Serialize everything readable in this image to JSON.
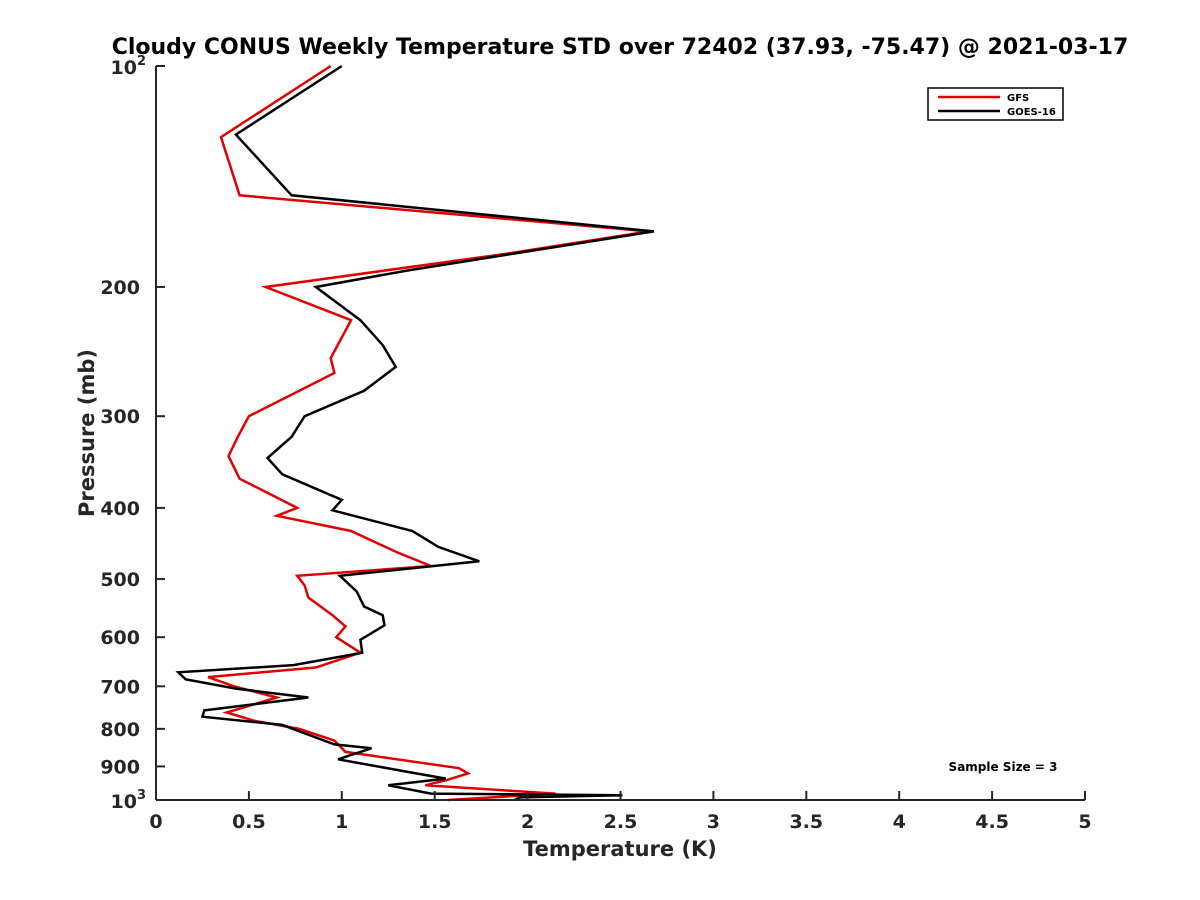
{
  "chart_data": {
    "type": "line",
    "title": "Cloudy CONUS Weekly Temperature STD over 72402 (37.93, -75.47) @ 2021-03-17",
    "xlabel": "Temperature (K)",
    "ylabel": "Pressure (mb)",
    "xlim": [
      0,
      5
    ],
    "ylim": [
      100,
      1000
    ],
    "y_scale": "log",
    "y_reversed": true,
    "grid": false,
    "legend_position": "top-right",
    "x_ticks": [
      {
        "value": 0,
        "label": "0"
      },
      {
        "value": 0.5,
        "label": "0.5"
      },
      {
        "value": 1,
        "label": "1"
      },
      {
        "value": 1.5,
        "label": "1.5"
      },
      {
        "value": 2,
        "label": "2"
      },
      {
        "value": 2.5,
        "label": "2.5"
      },
      {
        "value": 3,
        "label": "3"
      },
      {
        "value": 3.5,
        "label": "3.5"
      },
      {
        "value": 4,
        "label": "4"
      },
      {
        "value": 4.5,
        "label": "4.5"
      },
      {
        "value": 5,
        "label": "5"
      }
    ],
    "y_ticks": [
      {
        "value": 100,
        "base": "10",
        "exp": "2"
      },
      {
        "value": 200,
        "label": "200"
      },
      {
        "value": 300,
        "label": "300"
      },
      {
        "value": 400,
        "label": "400"
      },
      {
        "value": 500,
        "label": "500"
      },
      {
        "value": 600,
        "label": "600"
      },
      {
        "value": 700,
        "label": "700"
      },
      {
        "value": 800,
        "label": "800"
      },
      {
        "value": 900,
        "label": "900"
      },
      {
        "value": 1000,
        "base": "10",
        "exp": "3"
      }
    ],
    "series": [
      {
        "name": "GFS",
        "color": "#e00000",
        "points": [
          {
            "x": 0.94,
            "p": 100
          },
          {
            "x": 0.35,
            "p": 125
          },
          {
            "x": 0.45,
            "p": 150
          },
          {
            "x": 2.65,
            "p": 168
          },
          {
            "x": 1.9,
            "p": 180
          },
          {
            "x": 0.59,
            "p": 200
          },
          {
            "x": 1.05,
            "p": 222
          },
          {
            "x": 0.94,
            "p": 250
          },
          {
            "x": 0.96,
            "p": 262
          },
          {
            "x": 0.5,
            "p": 300
          },
          {
            "x": 0.44,
            "p": 320
          },
          {
            "x": 0.39,
            "p": 340
          },
          {
            "x": 0.45,
            "p": 365
          },
          {
            "x": 0.76,
            "p": 400
          },
          {
            "x": 0.65,
            "p": 410
          },
          {
            "x": 1.05,
            "p": 430
          },
          {
            "x": 1.3,
            "p": 460
          },
          {
            "x": 1.48,
            "p": 480
          },
          {
            "x": 0.76,
            "p": 495
          },
          {
            "x": 0.8,
            "p": 510
          },
          {
            "x": 0.82,
            "p": 530
          },
          {
            "x": 0.95,
            "p": 560
          },
          {
            "x": 1.02,
            "p": 580
          },
          {
            "x": 0.97,
            "p": 600
          },
          {
            "x": 1.1,
            "p": 630
          },
          {
            "x": 0.86,
            "p": 660
          },
          {
            "x": 0.28,
            "p": 680
          },
          {
            "x": 0.42,
            "p": 700
          },
          {
            "x": 0.65,
            "p": 725
          },
          {
            "x": 0.38,
            "p": 760
          },
          {
            "x": 0.53,
            "p": 780
          },
          {
            "x": 0.77,
            "p": 800
          },
          {
            "x": 0.96,
            "p": 830
          },
          {
            "x": 1.02,
            "p": 860
          },
          {
            "x": 1.63,
            "p": 905
          },
          {
            "x": 1.68,
            "p": 920
          },
          {
            "x": 1.56,
            "p": 940
          },
          {
            "x": 1.45,
            "p": 955
          },
          {
            "x": 2.15,
            "p": 980
          },
          {
            "x": 1.57,
            "p": 1000
          }
        ]
      },
      {
        "name": "GOES-16",
        "color": "#000000",
        "points": [
          {
            "x": 1.0,
            "p": 100
          },
          {
            "x": 0.43,
            "p": 124
          },
          {
            "x": 0.73,
            "p": 150
          },
          {
            "x": 2.68,
            "p": 168
          },
          {
            "x": 1.35,
            "p": 190
          },
          {
            "x": 0.86,
            "p": 200
          },
          {
            "x": 1.1,
            "p": 222
          },
          {
            "x": 1.22,
            "p": 240
          },
          {
            "x": 1.29,
            "p": 257
          },
          {
            "x": 1.12,
            "p": 277
          },
          {
            "x": 0.8,
            "p": 300
          },
          {
            "x": 0.73,
            "p": 320
          },
          {
            "x": 0.6,
            "p": 342
          },
          {
            "x": 0.68,
            "p": 360
          },
          {
            "x": 1.0,
            "p": 390
          },
          {
            "x": 0.95,
            "p": 403
          },
          {
            "x": 1.38,
            "p": 430
          },
          {
            "x": 1.52,
            "p": 452
          },
          {
            "x": 1.74,
            "p": 473
          },
          {
            "x": 0.99,
            "p": 495
          },
          {
            "x": 1.08,
            "p": 520
          },
          {
            "x": 1.12,
            "p": 545
          },
          {
            "x": 1.22,
            "p": 560
          },
          {
            "x": 1.23,
            "p": 578
          },
          {
            "x": 1.1,
            "p": 605
          },
          {
            "x": 1.11,
            "p": 630
          },
          {
            "x": 0.74,
            "p": 655
          },
          {
            "x": 0.12,
            "p": 670
          },
          {
            "x": 0.16,
            "p": 685
          },
          {
            "x": 0.43,
            "p": 705
          },
          {
            "x": 0.82,
            "p": 725
          },
          {
            "x": 0.26,
            "p": 755
          },
          {
            "x": 0.25,
            "p": 770
          },
          {
            "x": 0.68,
            "p": 790
          },
          {
            "x": 0.96,
            "p": 840
          },
          {
            "x": 1.16,
            "p": 850
          },
          {
            "x": 1.1,
            "p": 860
          },
          {
            "x": 1.04,
            "p": 870
          },
          {
            "x": 0.98,
            "p": 880
          },
          {
            "x": 1.4,
            "p": 920
          },
          {
            "x": 1.56,
            "p": 935
          },
          {
            "x": 1.25,
            "p": 955
          },
          {
            "x": 1.48,
            "p": 980
          },
          {
            "x": 2.51,
            "p": 985
          },
          {
            "x": 1.96,
            "p": 992
          },
          {
            "x": 1.93,
            "p": 1000
          }
        ]
      }
    ],
    "annotations": [
      {
        "text": "Sample Size = 3",
        "position": "bottom-right"
      }
    ]
  }
}
